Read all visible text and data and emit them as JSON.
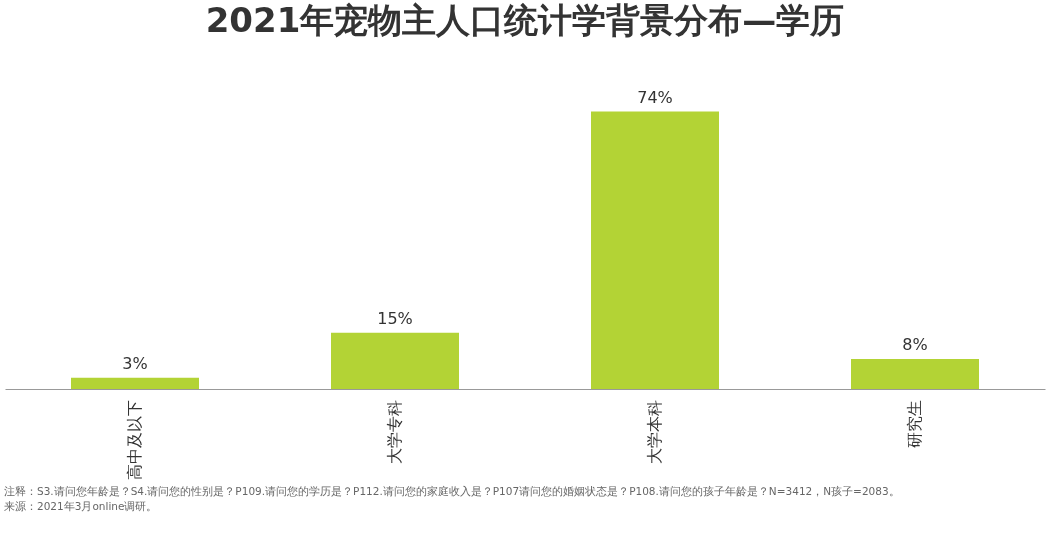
{
  "chart_data": {
    "type": "bar",
    "title": "2021年宠物主人口统计学背景分布—学历",
    "categories": [
      "高中及以下",
      "大学专科",
      "大学本科",
      "研究生"
    ],
    "values": [
      3,
      15,
      74,
      8
    ],
    "color": "#b3d335",
    "value_labels": [
      "3%",
      "15%",
      "74%",
      "8%"
    ],
    "annotations": [
      "注释：S3.请问您年龄是？S4.请问您的性别是？P109.请问您的学历是？P112.请问您的家庭收入是？P107请问您的婚姻状态是？P108.请问您的孩子年龄是？N=3412，N孩子=2083。",
      "来源：2021年3月online调研。"
    ]
  }
}
